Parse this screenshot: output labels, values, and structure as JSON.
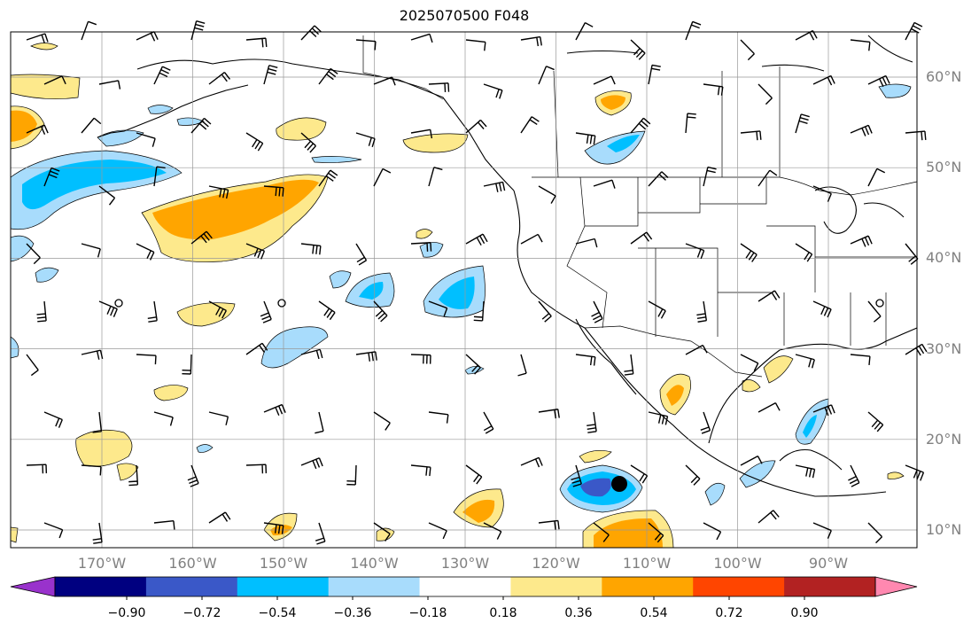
{
  "title": "2025070500 F048",
  "lat_labels": [
    {
      "text": "60°N",
      "lat": 60
    },
    {
      "text": "50°N",
      "lat": 50
    },
    {
      "text": "40°N",
      "lat": 40
    },
    {
      "text": "30°N",
      "lat": 30
    },
    {
      "text": "20°N",
      "lat": 20
    },
    {
      "text": "10°N",
      "lat": 10
    }
  ],
  "lon_labels": [
    {
      "text": "170°W",
      "lon": -170
    },
    {
      "text": "160°W",
      "lon": -160
    },
    {
      "text": "150°W",
      "lon": -150
    },
    {
      "text": "140°W",
      "lon": -140
    },
    {
      "text": "130°W",
      "lon": -130
    },
    {
      "text": "120°W",
      "lon": -120
    },
    {
      "text": "110°W",
      "lon": -110
    },
    {
      "text": "100°W",
      "lon": -100
    },
    {
      "text": "90°W",
      "lon": -90
    }
  ],
  "colorbar": {
    "extend": "both",
    "under_color": "#9932cc",
    "over_color": "#ff88b0",
    "colors": [
      "#000080",
      "#3a58c8",
      "#00bfff",
      "#a8dcfc",
      "#ffffff",
      "#fde98c",
      "#ffa500",
      "#ff4500",
      "#b22222"
    ],
    "tick_labels": [
      "−0.90",
      "−0.72",
      "−0.54",
      "−0.36",
      "−0.18",
      "0.18",
      "0.36",
      "0.54",
      "0.72",
      "0.90"
    ]
  }
}
